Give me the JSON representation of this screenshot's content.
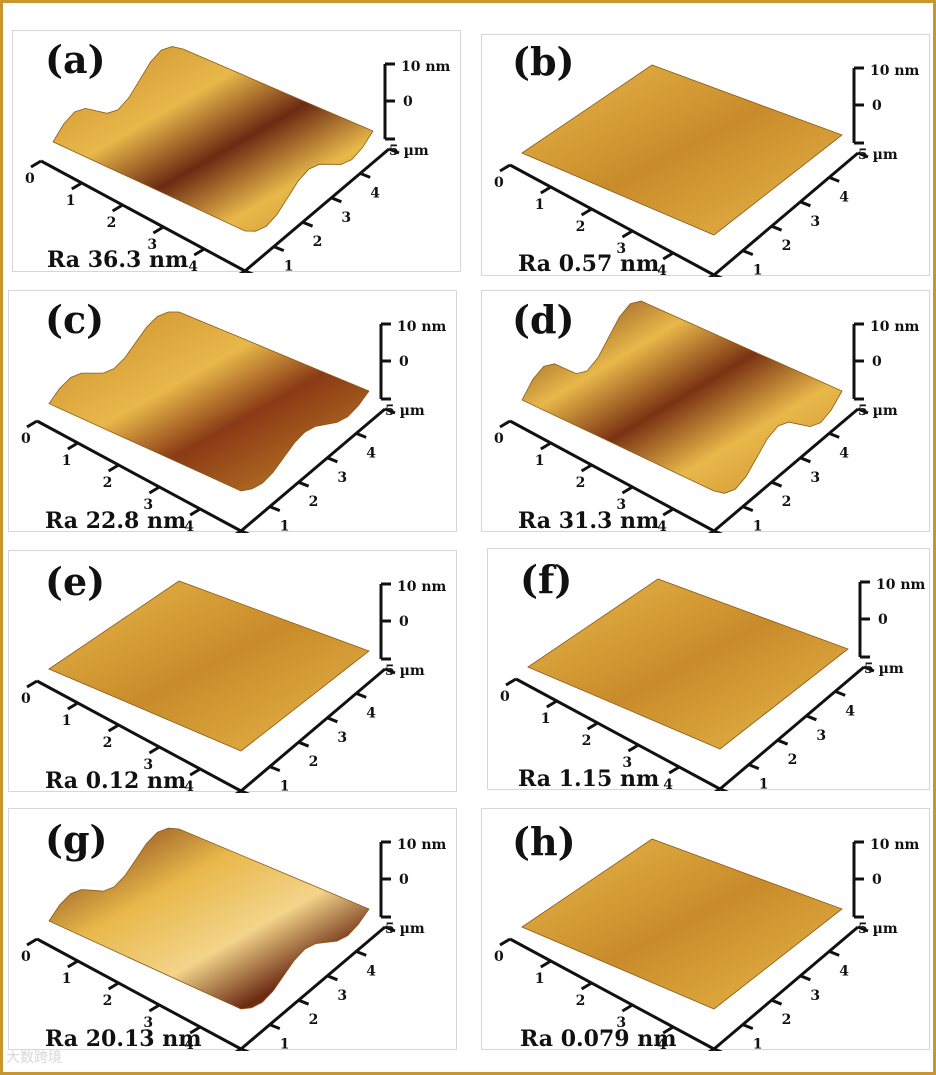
{
  "panels": [
    {
      "label": "(a)",
      "ra": "Ra 36.3 nm",
      "surface": "wavy-strong"
    },
    {
      "label": "(b)",
      "ra": "Ra 0.57 nm",
      "surface": "flat-textured"
    },
    {
      "label": "(c)",
      "ra": "Ra 22.8 nm",
      "surface": "wavy-medium"
    },
    {
      "label": "(d)",
      "ra": "Ra 31.3 nm",
      "surface": "wavy-ridges"
    },
    {
      "label": "(e)",
      "ra": "Ra 0.12 nm",
      "surface": "flat-smooth"
    },
    {
      "label": "(f)",
      "ra": "Ra 1.15 nm",
      "surface": "flat-rough"
    },
    {
      "label": "(g)",
      "ra": "Ra 20.13 nm",
      "surface": "diagonal-step"
    },
    {
      "label": "(h)",
      "ra": "Ra 0.079 nm",
      "surface": "flat-very-smooth"
    }
  ],
  "axes": {
    "x_ticks": [
      "0",
      "1",
      "2",
      "3",
      "4"
    ],
    "x_end": "5 µm",
    "y_ticks": [
      "0",
      "1",
      "2",
      "3",
      "4"
    ],
    "y_end": "5 µm",
    "z_top": "10 nm",
    "z_zero": "0"
  },
  "colors": {
    "frame": "#c8962e",
    "surface_light": "#e8b84a",
    "surface_mid": "#c98b2a",
    "surface_dark": "#6b2a12"
  },
  "watermark": "大数跨境"
}
